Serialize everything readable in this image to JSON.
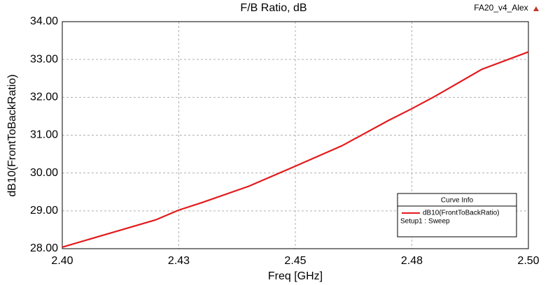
{
  "chart_data": {
    "type": "line",
    "title": "F/B Ratio, dB",
    "subtitle": "FA20_v4_Alex",
    "x_label": "Freq [GHz]",
    "y_label": "dB10(FrontToBackRatio)",
    "x": [
      2.4,
      2.41,
      2.42,
      2.425,
      2.43,
      2.44,
      2.45,
      2.46,
      2.47,
      2.475,
      2.48,
      2.49,
      2.5
    ],
    "series": [
      {
        "name": "dB10(FrontToBackRatio)",
        "setup": "Setup1 : Sweep",
        "color": "#e41a1c",
        "values": [
          28.04,
          28.4,
          28.76,
          29.02,
          29.22,
          29.65,
          30.18,
          30.72,
          31.39,
          31.7,
          32.03,
          32.74,
          33.2
        ]
      }
    ],
    "legend_title": "Curve Info",
    "xlim": [
      2.4,
      2.5
    ],
    "xticks": [
      {
        "value": 2.4,
        "label": "2.40"
      },
      {
        "value": 2.425,
        "label": "2.43"
      },
      {
        "value": 2.45,
        "label": "2.45"
      },
      {
        "value": 2.475,
        "label": "2.48"
      },
      {
        "value": 2.5,
        "label": "2.50"
      }
    ],
    "ylim": [
      28,
      34
    ],
    "yticks": [
      {
        "value": 28,
        "label": "28.00"
      },
      {
        "value": 29,
        "label": "29.00"
      },
      {
        "value": 30,
        "label": "30.00"
      },
      {
        "value": 31,
        "label": "31.00"
      },
      {
        "value": 32,
        "label": "32.00"
      },
      {
        "value": 33,
        "label": "33.00"
      },
      {
        "value": 34,
        "label": "34.00"
      }
    ],
    "grid": true
  }
}
